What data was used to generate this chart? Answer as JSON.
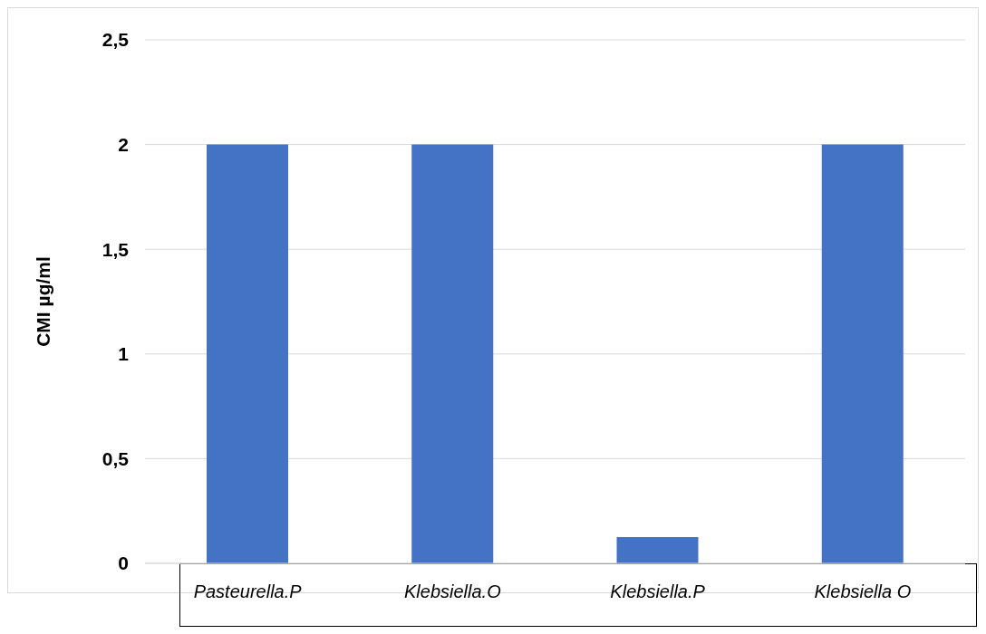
{
  "chart_data": {
    "type": "bar",
    "ylabel": "CMI µg/ml",
    "categories": [
      "Pasteurella.P",
      "Klebsiella.O",
      "Klebsiella.P",
      "Klebsiella O"
    ],
    "values": [
      2,
      2,
      0.125,
      2
    ],
    "color": "#4472c4",
    "ylim": [
      0,
      2.5
    ],
    "yticks": [
      0,
      {
        "value": 0.5,
        "label": "0,5"
      },
      1,
      {
        "value": 1.5,
        "label": "1,5"
      },
      2,
      {
        "value": 2.5,
        "label": "2,5"
      }
    ],
    "grid": "y"
  }
}
